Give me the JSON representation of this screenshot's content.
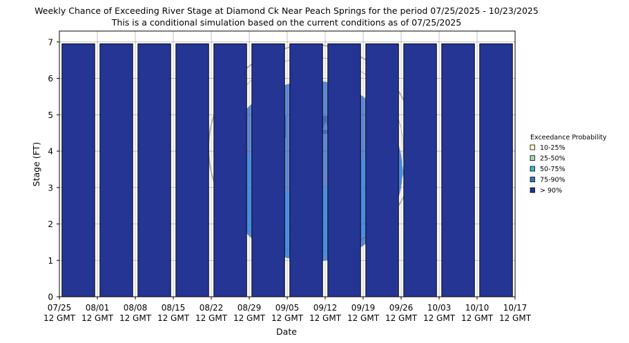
{
  "chart_data": {
    "type": "bar",
    "title": "Weekly Chance of Exceeding River Stage at Diamond Ck Near Peach Springs for the period 07/25/2025 - 10/23/2025",
    "subtitle": "This is a conditional simulation based on the current conditions as of 07/25/2025",
    "xlabel": "Date",
    "ylabel": "Stage (FT)",
    "ylim": [
      0,
      7.3
    ],
    "yticks": [
      "0",
      "1",
      "2",
      "3",
      "4",
      "5",
      "6",
      "7"
    ],
    "x_tick_labels": [
      {
        "date": "07/25",
        "time": "12 GMT"
      },
      {
        "date": "08/01",
        "time": "12 GMT"
      },
      {
        "date": "08/08",
        "time": "12 GMT"
      },
      {
        "date": "08/15",
        "time": "12 GMT"
      },
      {
        "date": "08/22",
        "time": "12 GMT"
      },
      {
        "date": "08/29",
        "time": "12 GMT"
      },
      {
        "date": "09/05",
        "time": "12 GMT"
      },
      {
        "date": "09/12",
        "time": "12 GMT"
      },
      {
        "date": "09/19",
        "time": "12 GMT"
      },
      {
        "date": "09/26",
        "time": "12 GMT"
      },
      {
        "date": "10/03",
        "time": "12 GMT"
      },
      {
        "date": "10/10",
        "time": "12 GMT"
      },
      {
        "date": "10/17",
        "time": "12 GMT"
      }
    ],
    "series": [
      {
        "name": "10-25%",
        "color": "#ffffcc",
        "values": [
          6.95,
          6.95,
          6.95,
          6.95,
          6.95,
          6.95,
          6.95,
          6.95,
          6.95,
          6.95,
          6.95,
          6.95
        ]
      },
      {
        "name": "25-50%",
        "color": "#a1dab4",
        "values": [
          6.95,
          6.95,
          6.95,
          6.95,
          6.95,
          6.95,
          6.95,
          6.95,
          6.95,
          6.95,
          6.95,
          6.95
        ]
      },
      {
        "name": "50-75%",
        "color": "#41b6c4",
        "values": [
          6.95,
          6.95,
          6.95,
          6.95,
          6.95,
          6.95,
          6.95,
          6.95,
          6.95,
          6.95,
          6.95,
          6.95
        ]
      },
      {
        "name": "75-90%",
        "color": "#2c7fb8",
        "values": [
          6.95,
          6.95,
          6.95,
          6.95,
          6.95,
          6.95,
          6.95,
          6.95,
          6.95,
          6.95,
          6.95,
          6.95
        ]
      },
      {
        "name": "> 90%",
        "color": "#253494",
        "values": [
          6.95,
          6.95,
          6.95,
          6.95,
          6.95,
          6.95,
          6.95,
          6.95,
          6.95,
          6.95,
          6.95,
          6.95
        ]
      }
    ],
    "grid": true,
    "legend": {
      "title": "Exceedance Probability",
      "placement": "right"
    }
  },
  "watermark": {
    "text": "NATIONAL OCEANIC AND ATMOSPHERIC ADMINISTRATION · U.S. DEPARTMENT OF COMMERCE",
    "logo": "NOAA"
  }
}
